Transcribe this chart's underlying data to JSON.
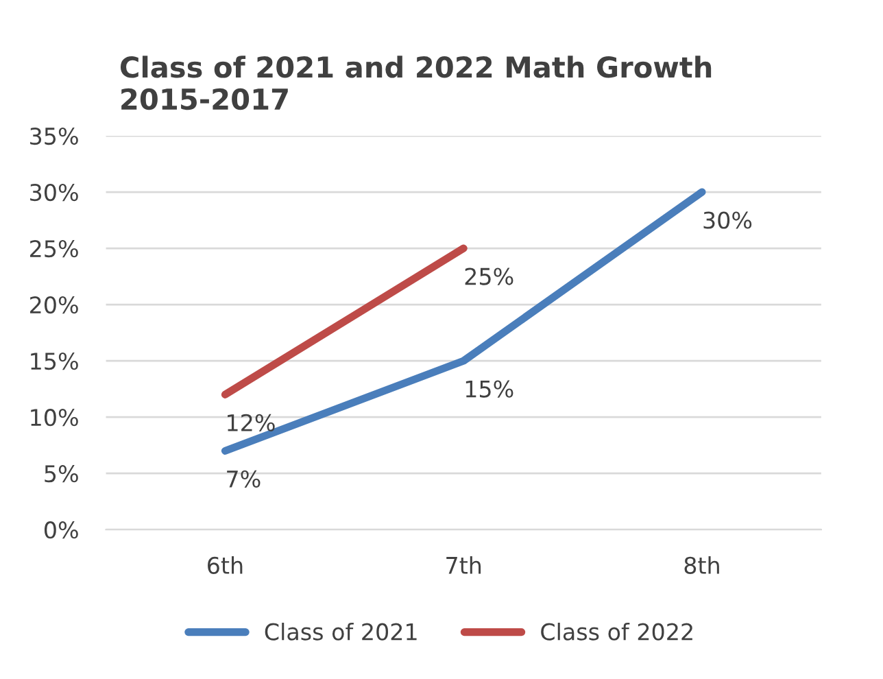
{
  "chart_data": {
    "type": "line",
    "title": "Class of 2021 and 2022 Math Growth\n2015-2017",
    "categories": [
      "6th",
      "7th",
      "8th"
    ],
    "series": [
      {
        "name": "Class of 2021",
        "color": "#4a7ebb",
        "values": [
          7,
          15,
          30
        ],
        "value_labels": [
          "7%",
          "15%",
          "30%"
        ]
      },
      {
        "name": "Class of 2022",
        "color": "#be4b48",
        "values": [
          12,
          25,
          null
        ],
        "value_labels": [
          "12%",
          "25%",
          null
        ]
      }
    ],
    "ylim": [
      0,
      35
    ],
    "yticks": [
      {
        "value": 0,
        "label": "0%"
      },
      {
        "value": 5,
        "label": "5%"
      },
      {
        "value": 10,
        "label": "10%"
      },
      {
        "value": 15,
        "label": "15%"
      },
      {
        "value": 20,
        "label": "20%"
      },
      {
        "value": 25,
        "label": "25%"
      },
      {
        "value": 30,
        "label": "30%"
      },
      {
        "value": 35,
        "label": "35%"
      }
    ],
    "grid": "y",
    "legend": "bottom",
    "marker": "none",
    "line_style": "solid"
  }
}
